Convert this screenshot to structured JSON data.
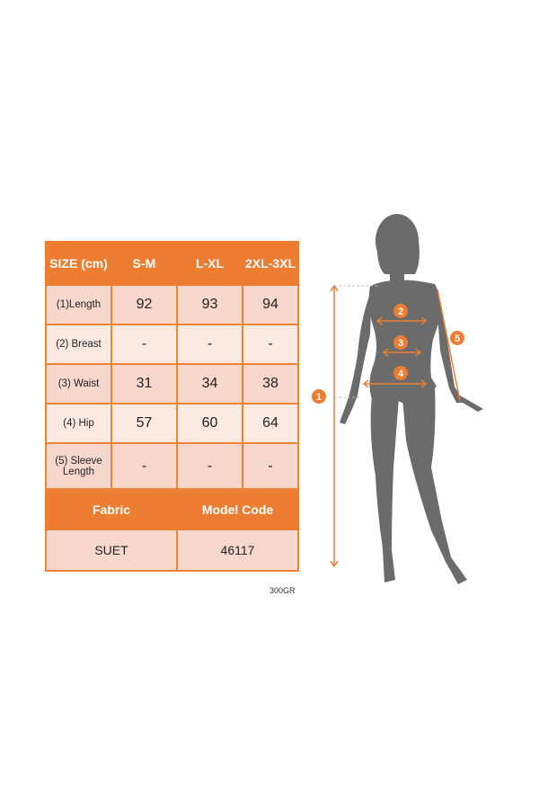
{
  "table": {
    "header": [
      "SIZE (cm)",
      "S-M",
      "L-XL",
      "2XL-3XL"
    ],
    "rows": [
      {
        "label": "(1)Length",
        "values": [
          "92",
          "93",
          "94"
        ]
      },
      {
        "label": "(2) Breast",
        "values": [
          "-",
          "-",
          "-"
        ]
      },
      {
        "label": "(3) Waist",
        "values": [
          "31",
          "34",
          "38"
        ]
      },
      {
        "label": "(4) Hip",
        "values": [
          "57",
          "60",
          "64"
        ]
      },
      {
        "label": "(5) Sleeve Length",
        "values": [
          "-",
          "-",
          "-"
        ]
      }
    ],
    "footer_header": [
      "Fabric",
      "Model Code"
    ],
    "footer_values": [
      "SUET",
      "46117"
    ]
  },
  "note": "300GR",
  "figure": {
    "markers": [
      "1",
      "2",
      "3",
      "4",
      "5"
    ]
  },
  "colors": {
    "accent": "#ed7d31",
    "row_dark": "#f8d8cc",
    "row_light": "#fbe9e2",
    "silhouette": "#6b6b6b"
  }
}
